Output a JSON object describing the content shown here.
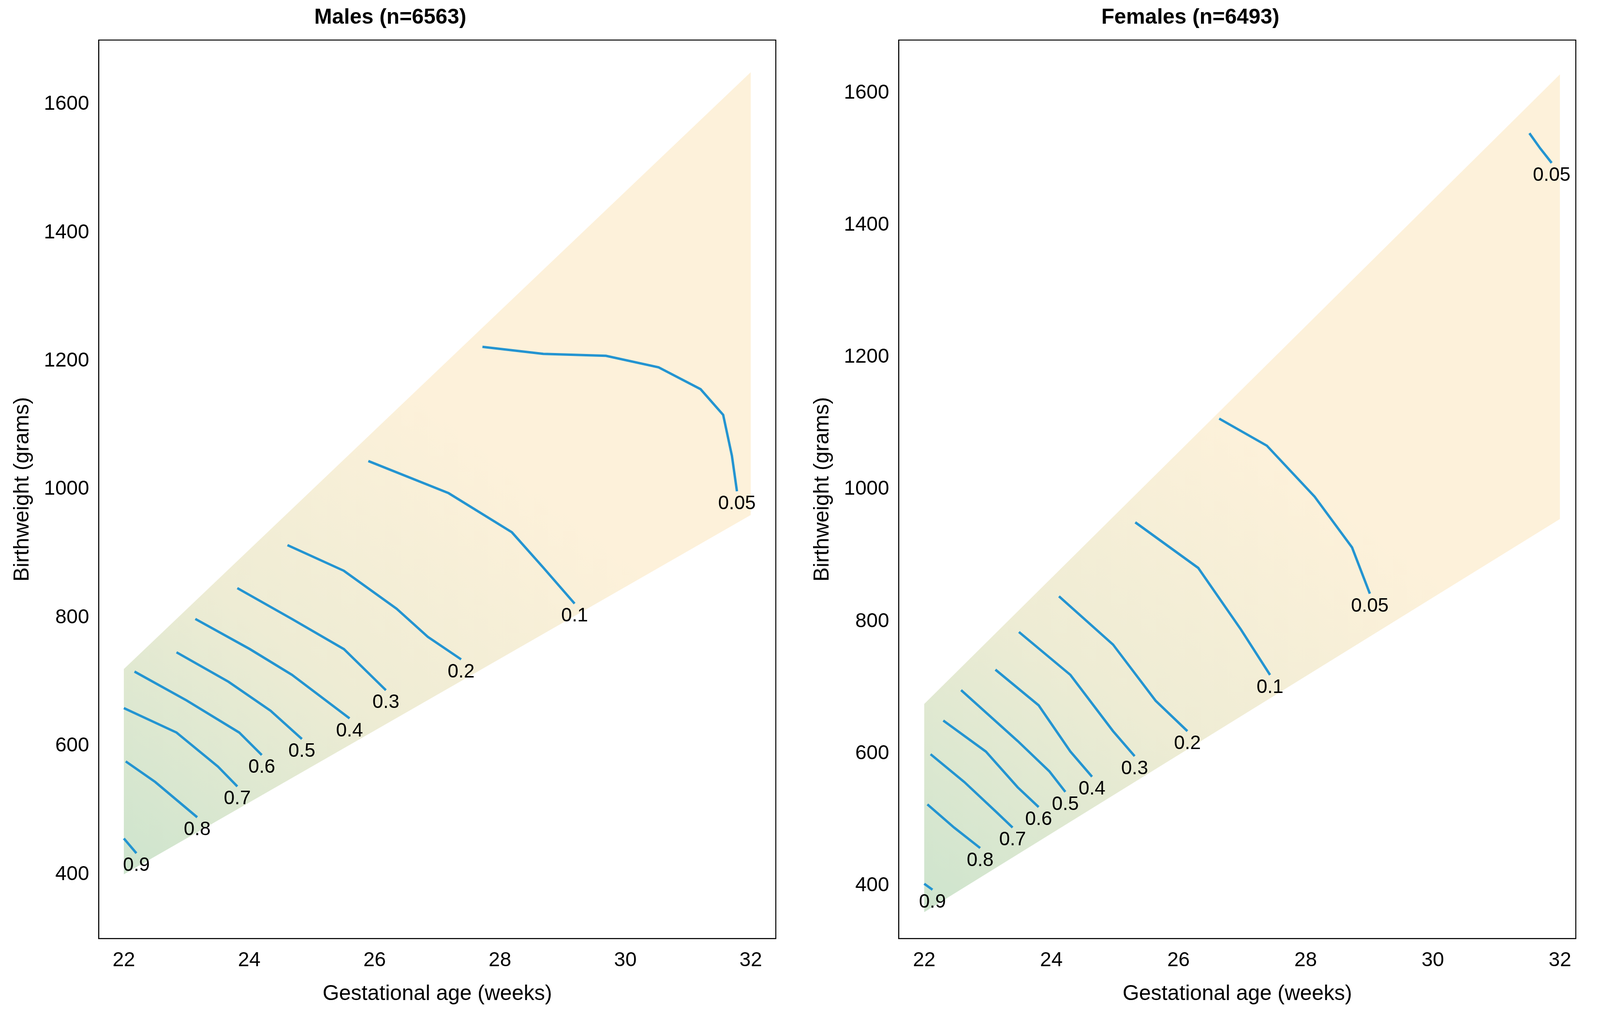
{
  "chart_data": [
    {
      "type": "line",
      "title": "Males (n=6563)",
      "x_label": "Gestational age (weeks)",
      "y_label": "Birthweight (grams)",
      "xlim": [
        21.6,
        32.4
      ],
      "ylim": [
        300,
        1700
      ],
      "xticks": [
        22,
        24,
        26,
        28,
        30,
        32
      ],
      "yticks": [
        400,
        600,
        800,
        1000,
        1200,
        1400,
        1600
      ],
      "grid": false,
      "legend": false,
      "color": "#2394d1",
      "region": {
        "x": [
          22,
          22,
          32,
          32
        ],
        "y": [
          400,
          720,
          1650,
          960
        ]
      },
      "series": [
        {
          "name": "0.05",
          "x": [
            27.72,
            28.69,
            29.69,
            30.53,
            31.2,
            31.56,
            31.7,
            31.78
          ],
          "values": [
            1222,
            1211,
            1208,
            1190,
            1156,
            1116,
            1052,
            997
          ]
        },
        {
          "name": "0.1",
          "x": [
            25.9,
            27.18,
            28.19,
            28.69,
            29.19
          ],
          "values": [
            1044,
            994,
            933,
            878,
            822
          ]
        },
        {
          "name": "0.2",
          "x": [
            24.61,
            25.51,
            26.35,
            26.85,
            27.38
          ],
          "values": [
            913,
            873,
            814,
            770,
            735
          ]
        },
        {
          "name": "0.3",
          "x": [
            23.81,
            24.68,
            25.51,
            26.18
          ],
          "values": [
            846,
            798,
            751,
            687
          ]
        },
        {
          "name": "0.4",
          "x": [
            23.14,
            24.01,
            24.68,
            25.6
          ],
          "values": [
            798,
            751,
            711,
            643
          ]
        },
        {
          "name": "0.5",
          "x": [
            22.84,
            23.67,
            24.34,
            24.84
          ],
          "values": [
            746,
            700,
            655,
            611
          ]
        },
        {
          "name": "0.6",
          "x": [
            22.17,
            23.0,
            23.84,
            24.2
          ],
          "values": [
            716,
            671,
            621,
            586
          ]
        },
        {
          "name": "0.7",
          "x": [
            22.0,
            22.84,
            23.5,
            23.81
          ],
          "values": [
            659,
            621,
            568,
            537
          ]
        },
        {
          "name": "0.8",
          "x": [
            22.03,
            22.5,
            23.17
          ],
          "values": [
            576,
            544,
            489
          ]
        },
        {
          "name": "0.9",
          "x": [
            22.0,
            22.2
          ],
          "values": [
            456,
            433
          ]
        }
      ]
    },
    {
      "type": "line",
      "title": "Females (n=6493)",
      "x_label": "Gestational age (weeks)",
      "y_label": "Birthweight (grams)",
      "xlim": [
        21.6,
        32.25
      ],
      "ylim": [
        320,
        1680
      ],
      "xticks": [
        22,
        24,
        26,
        28,
        30,
        32
      ],
      "yticks": [
        400,
        600,
        800,
        1000,
        1200,
        1400,
        1600
      ],
      "grid": false,
      "legend": false,
      "color": "#2394d1",
      "region": {
        "x": [
          22,
          22,
          32,
          32
        ],
        "y": [
          360,
          675,
          1628,
          955
        ]
      },
      "series": [
        {
          "name": "0.05",
          "x": [
            31.52,
            31.69,
            31.87
          ],
          "values": [
            1539,
            1516,
            1494
          ]
        },
        {
          "name": "0.05",
          "x": [
            26.64,
            27.39,
            28.14,
            28.73,
            29.01
          ],
          "values": [
            1107,
            1066,
            989,
            912,
            842
          ]
        },
        {
          "name": "0.1",
          "x": [
            25.32,
            26.31,
            26.98,
            27.44
          ],
          "values": [
            950,
            881,
            788,
            719
          ]
        },
        {
          "name": "0.2",
          "x": [
            24.12,
            24.97,
            25.64,
            26.14
          ],
          "values": [
            838,
            765,
            680,
            634
          ]
        },
        {
          "name": "0.3",
          "x": [
            23.49,
            24.3,
            24.97,
            25.31
          ],
          "values": [
            784,
            719,
            634,
            596
          ]
        },
        {
          "name": "0.4",
          "x": [
            23.12,
            23.8,
            24.3,
            24.64
          ],
          "values": [
            727,
            673,
            603,
            565
          ]
        },
        {
          "name": "0.5",
          "x": [
            22.58,
            23.47,
            23.97,
            24.22
          ],
          "values": [
            696,
            619,
            573,
            542
          ]
        },
        {
          "name": "0.6",
          "x": [
            22.3,
            22.97,
            23.47,
            23.8
          ],
          "values": [
            650,
            603,
            549,
            519
          ]
        },
        {
          "name": "0.7",
          "x": [
            22.1,
            22.63,
            23.14,
            23.39
          ],
          "values": [
            599,
            557,
            511,
            488
          ]
        },
        {
          "name": "0.8",
          "x": [
            22.05,
            22.47,
            22.88
          ],
          "values": [
            523,
            488,
            457
          ]
        },
        {
          "name": "0.9",
          "x": [
            22.0,
            22.13
          ],
          "values": [
            403,
            394
          ]
        }
      ]
    }
  ]
}
